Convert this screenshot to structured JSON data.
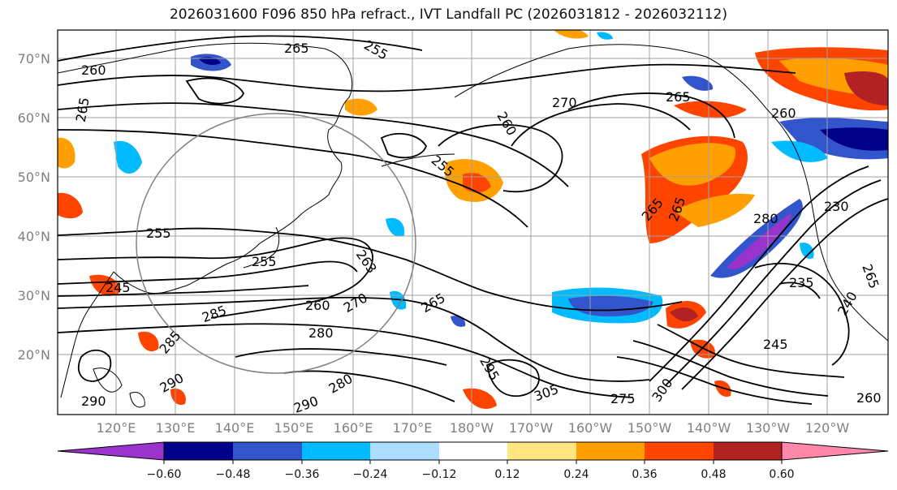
{
  "title": "2026031600 F096 850 hPa refract., IVT Landfall PC (2026031812 - 2026032112)",
  "map": {
    "lat_labels": [
      "70°N",
      "60°N",
      "50°N",
      "40°N",
      "30°N",
      "20°N"
    ],
    "lon_labels": [
      "120°E",
      "130°E",
      "140°E",
      "150°E",
      "160°E",
      "170°E",
      "180°W",
      "170°W",
      "160°W",
      "150°W",
      "140°W",
      "130°W",
      "120°W"
    ],
    "contour_labels": [
      "260",
      "265",
      "255",
      "265",
      "270",
      "265",
      "260",
      "255",
      "265",
      "255",
      "245",
      "255",
      "263",
      "260",
      "270",
      "265",
      "280",
      "285",
      "285",
      "280",
      "290",
      "290",
      "295",
      "290",
      "305",
      "300",
      "275",
      "265",
      "260",
      "280",
      "235",
      "240",
      "245",
      "260",
      "230",
      "265"
    ]
  },
  "colorbar": {
    "ticks": [
      "−0.60",
      "−0.48",
      "−0.36",
      "−0.24",
      "−0.12",
      "0.12",
      "0.24",
      "0.36",
      "0.48",
      "0.60"
    ],
    "colors": [
      "#9933cc",
      "#000088",
      "#3355cc",
      "#00bbff",
      "#aaddff",
      "#ffffff",
      "#ffe680",
      "#ffa000",
      "#ff4400",
      "#b22222",
      "#ff88aa"
    ]
  }
}
